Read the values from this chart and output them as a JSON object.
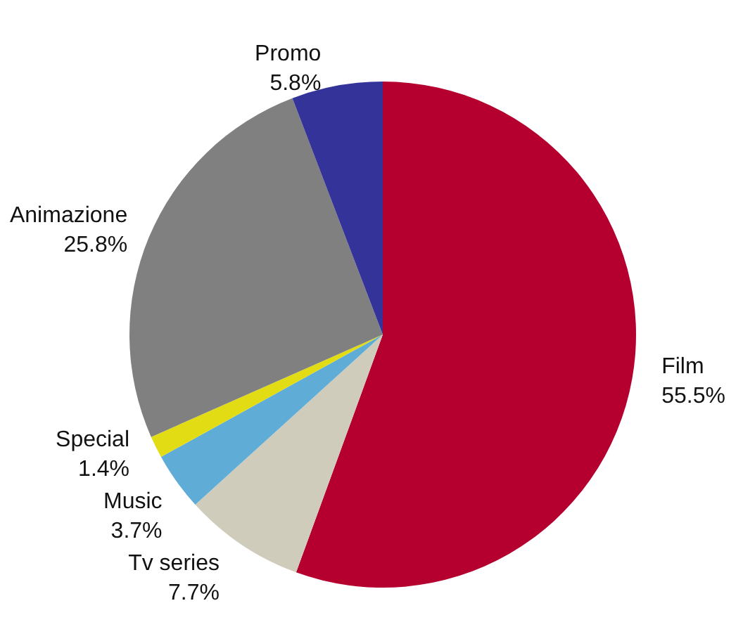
{
  "chart_data": {
    "type": "pie",
    "categories": [
      "Film",
      "Tv series",
      "Music",
      "Special",
      "Animazione",
      "Promo"
    ],
    "values": [
      55.5,
      7.7,
      3.7,
      1.4,
      25.8,
      5.8
    ],
    "colors": [
      "#b5002f",
      "#d0ccbc",
      "#5fadd6",
      "#e2dc14",
      "#808080",
      "#333399"
    ],
    "value_labels": [
      "55.5%",
      "7.7%",
      "3.7%",
      "1.4%",
      "25.8%",
      "5.8%"
    ],
    "legend": false
  }
}
